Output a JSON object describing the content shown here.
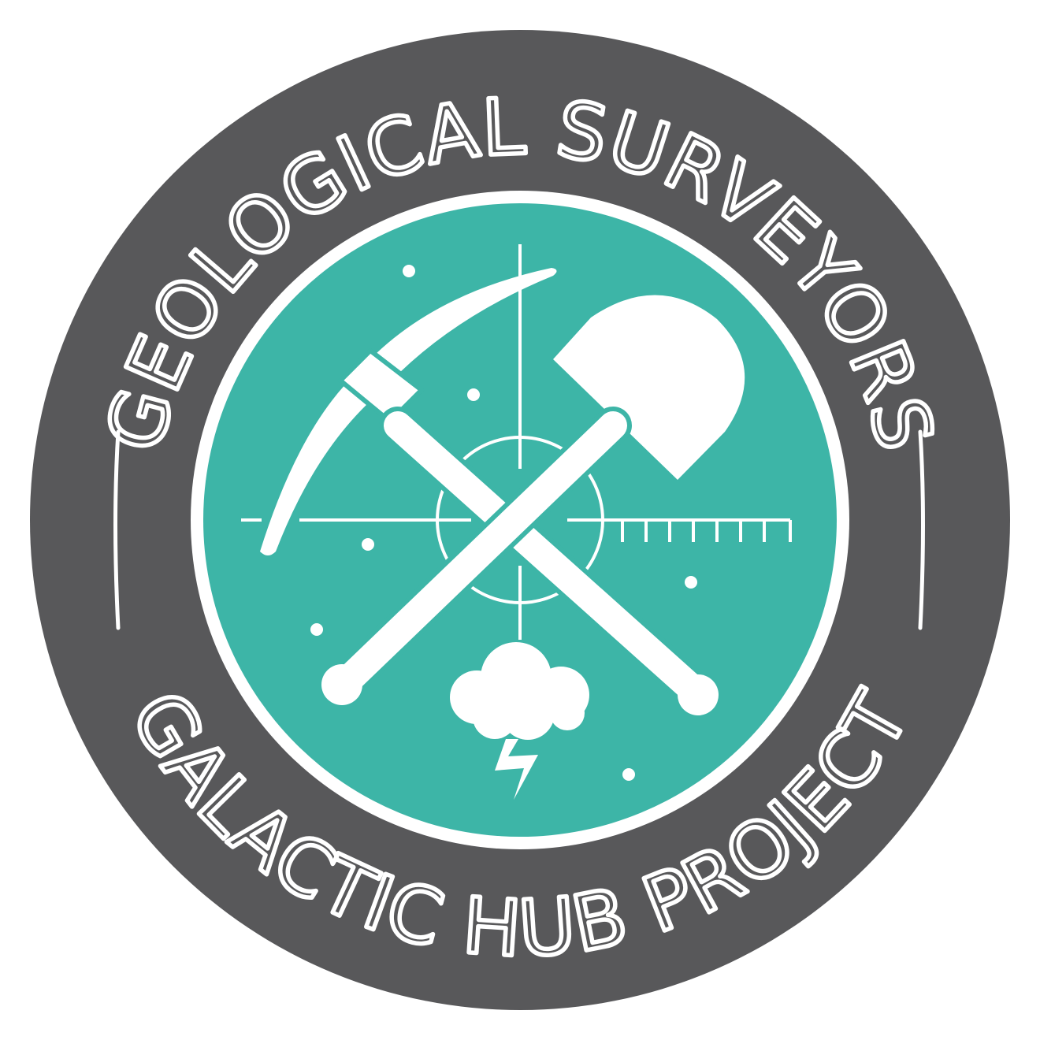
{
  "badge": {
    "top_text": "GEOLOGICAL SURVEYORS",
    "bottom_text": "GALACTIC HUB PROJECT",
    "colors": {
      "ring": "#58585a",
      "emblem": "#3db5a7",
      "ink": "#ffffff"
    },
    "icons": [
      "pickaxe-icon",
      "shovel-icon",
      "crosshair-icon",
      "ruler-icon",
      "storm-cloud-icon",
      "lightning-bolt-icon",
      "star-dot-icon"
    ]
  }
}
